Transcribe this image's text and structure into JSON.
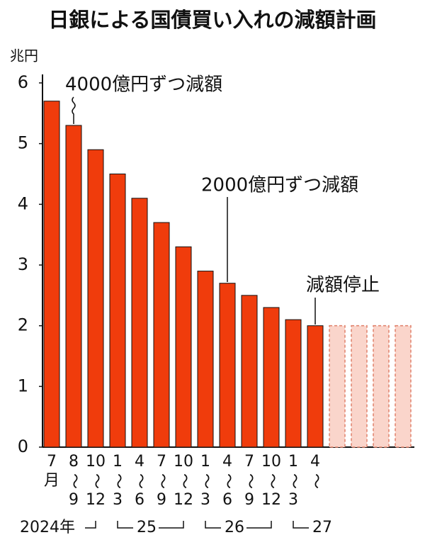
{
  "chart_data": {
    "type": "bar",
    "title": "日銀による国債買い入れの減額計画",
    "y_unit": "兆円",
    "categories": [
      [
        "7",
        "月"
      ],
      [
        "8",
        "〜",
        "9"
      ],
      [
        "10",
        "〜",
        "12"
      ],
      [
        "1",
        "〜",
        "3"
      ],
      [
        "4",
        "〜",
        "6"
      ],
      [
        "7",
        "〜",
        "9"
      ],
      [
        "10",
        "〜",
        "12"
      ],
      [
        "1",
        "〜",
        "3"
      ],
      [
        "4",
        "〜",
        "6"
      ],
      [
        "7",
        "〜",
        "9"
      ],
      [
        "10",
        "〜",
        "12"
      ],
      [
        "1",
        "〜",
        "3"
      ],
      [
        "4",
        "〜"
      ],
      null,
      null,
      null,
      null
    ],
    "series": [
      {
        "color": "#f03c0c",
        "values": [
          5.7,
          5.3,
          4.9,
          4.5,
          4.1,
          3.7,
          3.3,
          2.9,
          2.7,
          2.5,
          2.3,
          2.1,
          2.0,
          null,
          null,
          null,
          null
        ]
      },
      {
        "color": "#fad5cb",
        "dashed": true,
        "values": [
          null,
          null,
          null,
          null,
          null,
          null,
          null,
          null,
          null,
          null,
          null,
          null,
          null,
          2.0,
          2.0,
          2.0,
          2.0
        ]
      }
    ],
    "ylim": [
      0,
      6
    ],
    "yticks": [
      0,
      1,
      2,
      3,
      4,
      5,
      6
    ],
    "annotations": [
      "4000億円ずつ減額",
      "2000億円ずつ減額",
      "減額停止"
    ],
    "year_labels": [
      "2024年",
      "25",
      "26",
      "27"
    ]
  }
}
